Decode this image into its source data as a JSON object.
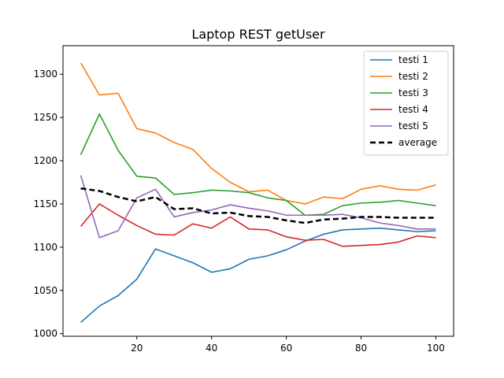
{
  "chart_data": {
    "type": "line",
    "title": "Laptop REST getUser",
    "xlabel": "",
    "ylabel": "",
    "xlim": [
      0.25,
      104.75
    ],
    "ylim": [
      997,
      1333
    ],
    "xticks": [
      20,
      40,
      60,
      80,
      100
    ],
    "yticks": [
      1000,
      1050,
      1100,
      1150,
      1200,
      1250,
      1300
    ],
    "legend_position": "top-right",
    "grid": false,
    "x": [
      5,
      10,
      15,
      20,
      25,
      30,
      35,
      40,
      45,
      50,
      55,
      60,
      65,
      70,
      75,
      80,
      85,
      90,
      95,
      100
    ],
    "series": [
      {
        "name": "testi 1",
        "color": "#1f77b4",
        "dash": "solid",
        "values": [
          1013,
          1032,
          1044,
          1063,
          1098,
          1090,
          1082,
          1071,
          1075,
          1086,
          1090,
          1097,
          1107,
          1115,
          1120,
          1121,
          1122,
          1120,
          1118,
          1119
        ]
      },
      {
        "name": "testi 2",
        "color": "#ff7f0e",
        "dash": "solid",
        "values": [
          1313,
          1276,
          1278,
          1237,
          1232,
          1221,
          1213,
          1191,
          1175,
          1164,
          1166,
          1154,
          1150,
          1158,
          1156,
          1167,
          1171,
          1167,
          1166,
          1172
        ]
      },
      {
        "name": "testi 3",
        "color": "#2ca02c",
        "dash": "solid",
        "values": [
          1207,
          1254,
          1212,
          1182,
          1180,
          1161,
          1163,
          1166,
          1165,
          1163,
          1157,
          1154,
          1137,
          1138,
          1148,
          1151,
          1152,
          1154,
          1151,
          1148
        ]
      },
      {
        "name": "testi 4",
        "color": "#d62728",
        "dash": "solid",
        "values": [
          1124,
          1150,
          1137,
          1125,
          1115,
          1114,
          1127,
          1122,
          1135,
          1121,
          1120,
          1112,
          1108,
          1109,
          1101,
          1102,
          1103,
          1106,
          1113,
          1111
        ]
      },
      {
        "name": "testi 5",
        "color": "#9467bd",
        "dash": "solid",
        "values": [
          1183,
          1111,
          1119,
          1157,
          1167,
          1135,
          1140,
          1143,
          1149,
          1145,
          1142,
          1137,
          1137,
          1137,
          1138,
          1134,
          1128,
          1125,
          1121,
          1121
        ]
      },
      {
        "name": "average",
        "color": "#000000",
        "dash": "dashed",
        "values": [
          1168,
          1165,
          1158,
          1153,
          1158,
          1144,
          1145,
          1139,
          1140,
          1136,
          1135,
          1131,
          1128,
          1132,
          1133,
          1135,
          1135,
          1134,
          1134,
          1134
        ]
      }
    ]
  }
}
